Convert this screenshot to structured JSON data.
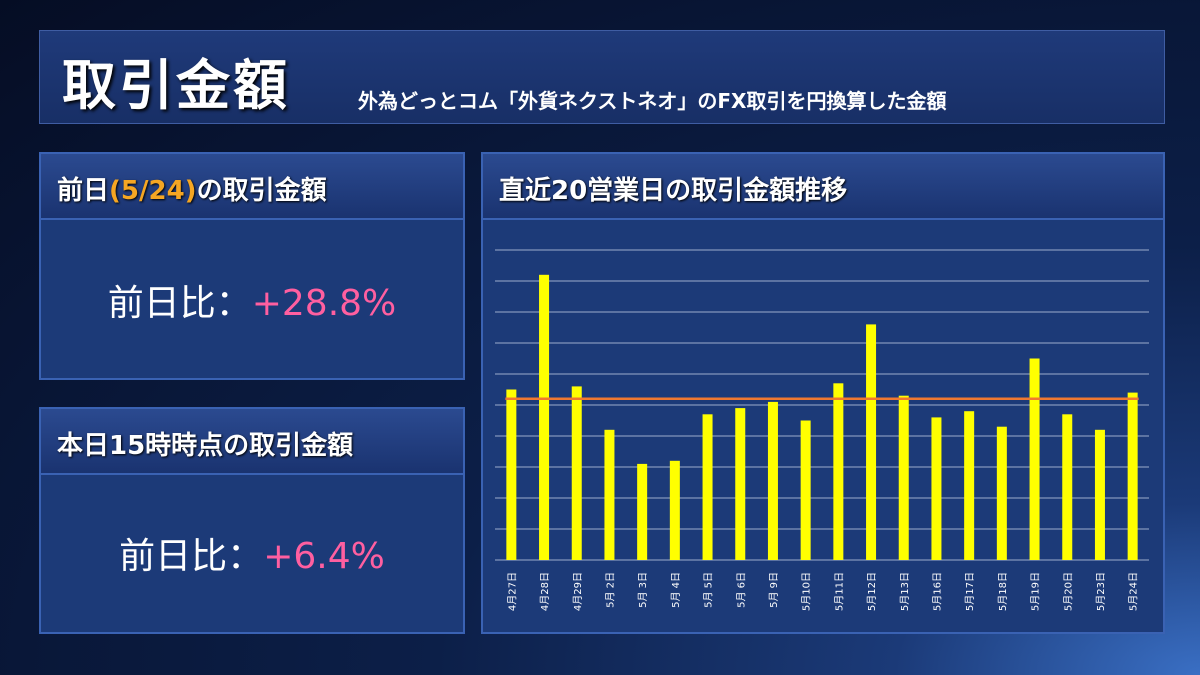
{
  "header": {
    "title": "取引金額",
    "subtitle": "外為どっとコム「外貨ネクストネオ」のFX取引を円換算した金額"
  },
  "prev_day": {
    "title_pre": "前日",
    "title_date": "(5/24)",
    "title_post": "の取引金額",
    "ratio_label": "前日比：",
    "ratio_value": "+28.8%"
  },
  "today": {
    "title": "本日15時時点の取引金額",
    "ratio_label": "前日比：",
    "ratio_value": "+6.4%"
  },
  "chart_panel": {
    "title": "直近20営業日の取引金額推移"
  },
  "colors": {
    "bar": "#ffff00",
    "average_line": "#f07830",
    "positive_value": "#ff5fa0",
    "date_accent": "#f5a623"
  },
  "chart_data": {
    "type": "bar",
    "categories": [
      "4月27日",
      "4月28日",
      "4月29日",
      "5月 2日",
      "5月 3日",
      "5月 4日",
      "5月 5日",
      "5月 6日",
      "5月 9日",
      "5月10日",
      "5月11日",
      "5月12日",
      "5月13日",
      "5月16日",
      "5月17日",
      "5月18日",
      "5月19日",
      "5月20日",
      "5月23日",
      "5月24日"
    ],
    "values": [
      5.5,
      9.2,
      5.6,
      4.2,
      3.1,
      3.2,
      4.7,
      4.9,
      5.1,
      4.5,
      5.7,
      7.6,
      5.3,
      4.6,
      4.8,
      4.3,
      6.5,
      4.7,
      4.2,
      5.4
    ],
    "average": 5.2,
    "ylim": [
      0,
      10
    ],
    "grid": true,
    "y_tick_labels_shown": false
  }
}
